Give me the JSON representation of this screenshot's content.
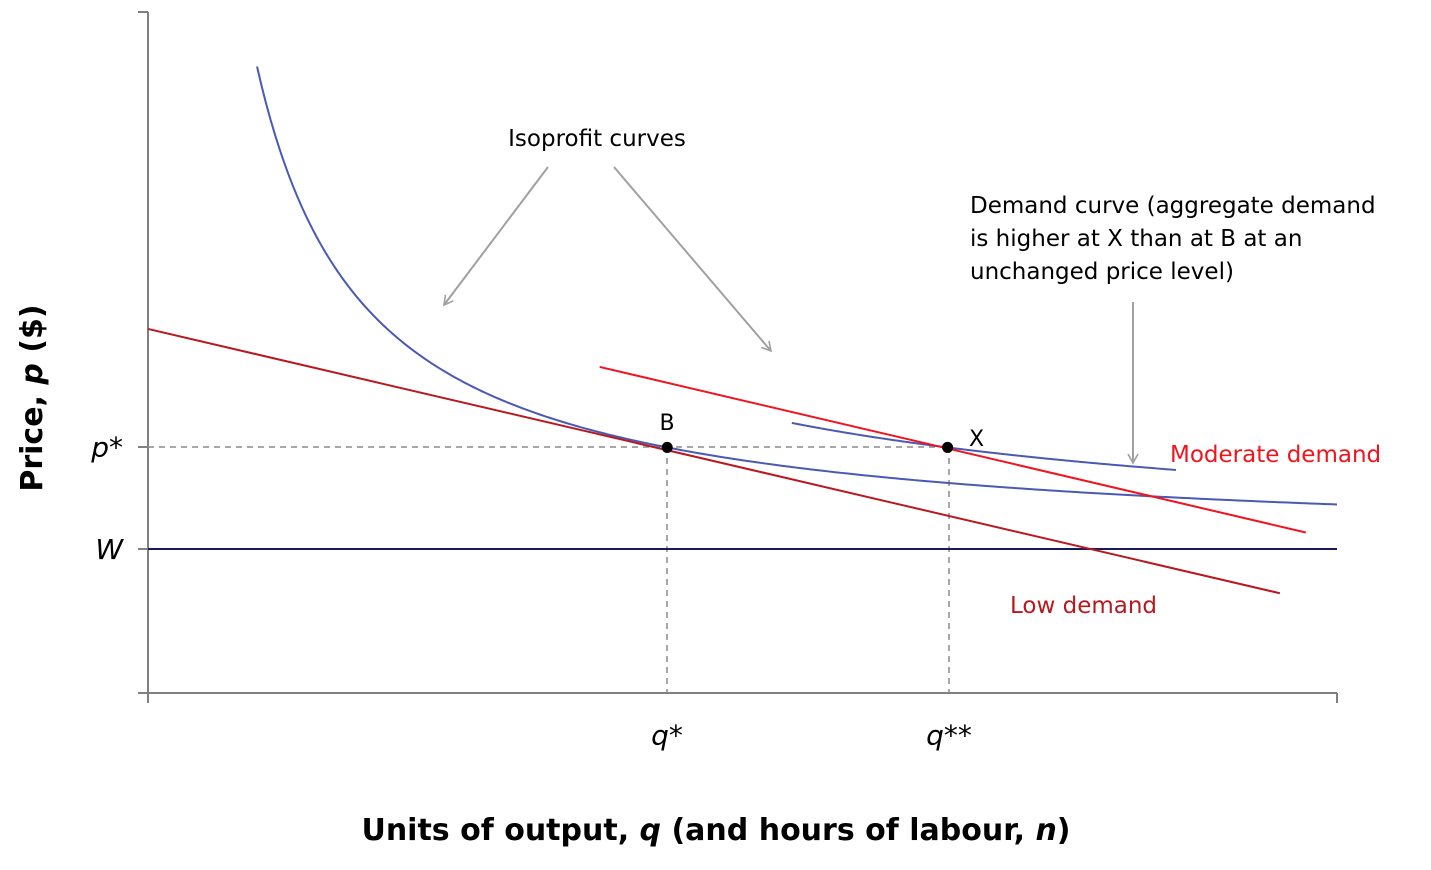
{
  "chart_data": {
    "type": "line",
    "xlabel": {
      "pre": "Units of output, ",
      "var1": "q",
      "mid": " (and hours of labour, ",
      "var2": "n",
      "post": ")"
    },
    "ylabel": {
      "pre": "Price, ",
      "var": "p",
      "post": " ($)"
    },
    "axis_ticks": {
      "y_pstar": "p*",
      "y_w": "W",
      "x_qstar": "q*",
      "x_qstarstar": "q**"
    },
    "tick_values": {
      "p_star": 100,
      "W": 80,
      "q_star": 100,
      "q_starstar": 154
    },
    "ylim": [
      51.5,
      186
    ],
    "xlim": [
      0,
      229
    ],
    "grid": false,
    "colors": {
      "axis": "#808080",
      "isoprofit": "#4a5ab4",
      "low_demand": "#b8191e",
      "moderate_demand": "#f0141e",
      "wage_line": "#1a1a5a",
      "annotation": "#a0a0a0",
      "guide": "#8a8a8a"
    },
    "series": [
      {
        "name": "Low demand",
        "kind": "demand",
        "points": [
          [
            0,
            123.4
          ],
          [
            218,
            71.2
          ]
        ]
      },
      {
        "name": "Moderate demand",
        "kind": "demand",
        "points": [
          [
            87,
            115.9
          ],
          [
            223,
            83.2
          ]
        ]
      },
      {
        "kind": "isoprofit",
        "formula": "p = W + k / q",
        "k": 2000,
        "x_range": [
          21,
          229
        ]
      },
      {
        "kind": "isoprofit",
        "formula": "p = W + k / q",
        "k": 3080,
        "x_range": [
          124,
          198
        ]
      },
      {
        "kind": "wage",
        "points": [
          [
            0,
            80
          ],
          [
            229,
            80
          ]
        ]
      }
    ],
    "points": [
      {
        "label": "B",
        "x": 100,
        "y": 100
      },
      {
        "label": "X",
        "x": 154,
        "y": 100
      }
    ],
    "annotations": {
      "isoprofit": "Isoprofit curves",
      "demand_lines": [
        "Demand curve (aggregate demand",
        "is higher at X than at B at an",
        "unchanged price level)"
      ],
      "moderate": "Moderate demand",
      "low": "Low demand"
    }
  }
}
